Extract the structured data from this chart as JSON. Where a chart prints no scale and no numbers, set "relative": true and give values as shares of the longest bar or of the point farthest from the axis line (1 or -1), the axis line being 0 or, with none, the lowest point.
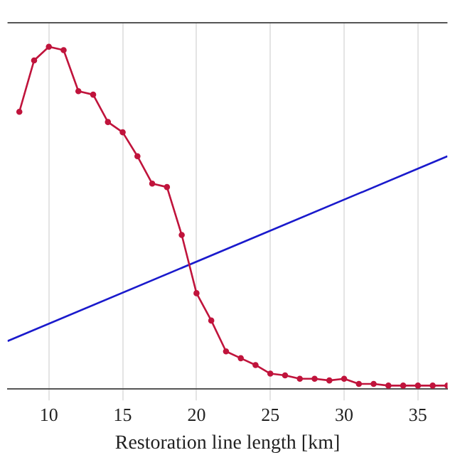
{
  "chart_data": {
    "type": "line",
    "relative": true,
    "xlabel": "Restoration line length [km]",
    "xlim": [
      7.2,
      37
    ],
    "xticks": [
      10,
      15,
      20,
      25,
      30,
      35
    ],
    "grid": "x",
    "legend": false,
    "series": [
      {
        "color": "#c0143c",
        "marker": "circle",
        "x": [
          8,
          9,
          10,
          11,
          12,
          13,
          14,
          15,
          16,
          17,
          18,
          19,
          20,
          21,
          22,
          23,
          24,
          25,
          26,
          27,
          28,
          29,
          30,
          31,
          32,
          33,
          34,
          35,
          36,
          37
        ],
        "values": [
          0.81,
          0.96,
          1.0,
          0.99,
          0.87,
          0.86,
          0.78,
          0.75,
          0.68,
          0.6,
          0.59,
          0.45,
          0.28,
          0.2,
          0.11,
          0.09,
          0.07,
          0.045,
          0.04,
          0.03,
          0.03,
          0.025,
          0.03,
          0.015,
          0.015,
          0.01,
          0.01,
          0.01,
          0.01,
          0.01
        ]
      },
      {
        "color": "#1a1acc",
        "marker": "none",
        "x": [
          7.2,
          37
        ],
        "values": [
          0.14,
          0.68
        ]
      }
    ]
  }
}
